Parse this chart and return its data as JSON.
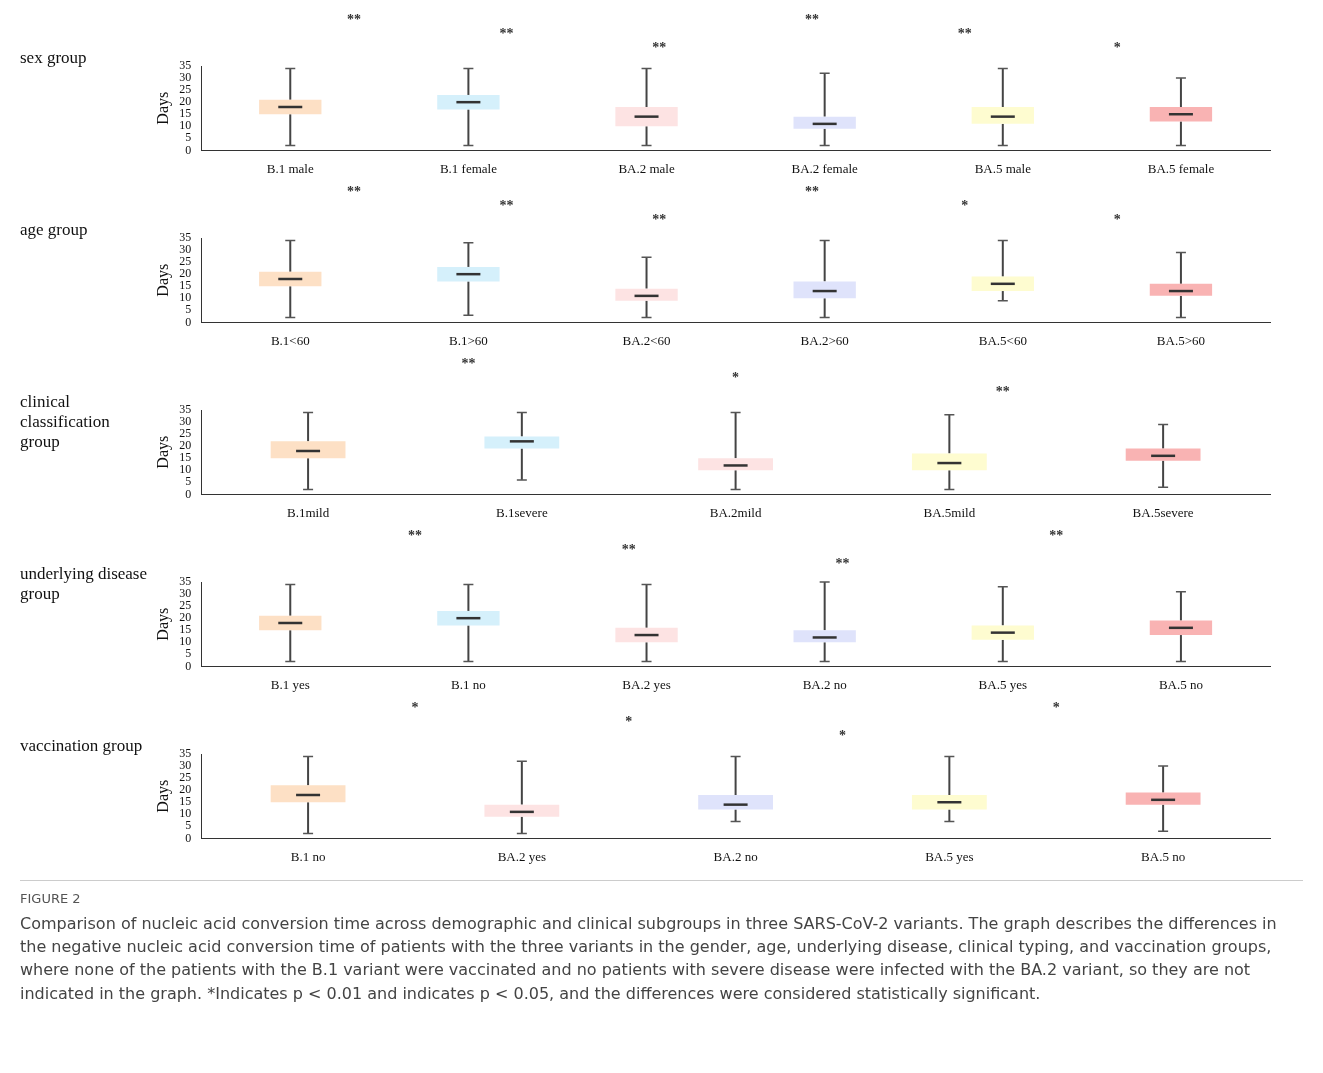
{
  "chart_data": [
    {
      "type": "box",
      "title": "sex group",
      "ylabel": "Days",
      "categories": [
        "B.1 male",
        "B.1 female",
        "BA.2 male",
        "BA.2 female",
        "BA.5 male",
        "BA.5 female"
      ],
      "colors": [
        "#fde0c5",
        "#d5f0fb",
        "#fde3e3",
        "#dfe3fb",
        "#fefcd0",
        "#f9b3b3"
      ],
      "ylim": [
        0,
        35
      ],
      "yticks": [
        0,
        5,
        10,
        15,
        20,
        25,
        30,
        35
      ],
      "grid": false,
      "legend": false,
      "annotations": [
        "**",
        "**",
        "**",
        "**",
        "**",
        "*"
      ],
      "boxes": [
        {
          "low": 2,
          "q1": 15,
          "median": 18,
          "q3": 21,
          "high": 34
        },
        {
          "low": 2,
          "q1": 17,
          "median": 20,
          "q3": 23,
          "high": 34
        },
        {
          "low": 2,
          "q1": 10,
          "median": 14,
          "q3": 18,
          "high": 34
        },
        {
          "low": 2,
          "q1": 9,
          "median": 11,
          "q3": 14,
          "high": 32
        },
        {
          "low": 2,
          "q1": 11,
          "median": 14,
          "q3": 18,
          "high": 34
        },
        {
          "low": 2,
          "q1": 12,
          "median": 15,
          "q3": 18,
          "high": 30
        }
      ]
    },
    {
      "type": "box",
      "title": "age group",
      "ylabel": "Days",
      "categories": [
        "B.1<60",
        "B.1>60",
        "BA.2<60",
        "BA.2>60",
        "BA.5<60",
        "BA.5>60"
      ],
      "colors": [
        "#fde0c5",
        "#d5f0fb",
        "#fde3e3",
        "#dfe3fb",
        "#fefcd0",
        "#f9b3b3"
      ],
      "ylim": [
        0,
        35
      ],
      "yticks": [
        0,
        5,
        10,
        15,
        20,
        25,
        30,
        35
      ],
      "grid": false,
      "legend": false,
      "annotations": [
        "**",
        "**",
        "**",
        "**",
        "*",
        "*"
      ],
      "boxes": [
        {
          "low": 2,
          "q1": 15,
          "median": 18,
          "q3": 21,
          "high": 34
        },
        {
          "low": 3,
          "q1": 17,
          "median": 20,
          "q3": 23,
          "high": 33
        },
        {
          "low": 2,
          "q1": 9,
          "median": 11,
          "q3": 14,
          "high": 27
        },
        {
          "low": 2,
          "q1": 10,
          "median": 13,
          "q3": 17,
          "high": 34
        },
        {
          "low": 9,
          "q1": 13,
          "median": 16,
          "q3": 19,
          "high": 34
        },
        {
          "low": 2,
          "q1": 11,
          "median": 13,
          "q3": 16,
          "high": 29
        }
      ]
    },
    {
      "type": "box",
      "title": "clinical classification group",
      "ylabel": "Days",
      "categories": [
        "B.1mild",
        "B.1severe",
        "BA.2mild",
        "BA.5mild",
        "BA.5severe"
      ],
      "colors": [
        "#fde0c5",
        "#d5f0fb",
        "#fde3e3",
        "#fefcd0",
        "#f9b3b3"
      ],
      "ylim": [
        0,
        35
      ],
      "yticks": [
        0,
        5,
        10,
        15,
        20,
        25,
        30,
        35
      ],
      "grid": false,
      "legend": false,
      "annotations": [
        "**",
        "*",
        "**"
      ],
      "boxes": [
        {
          "low": 2,
          "q1": 15,
          "median": 18,
          "q3": 22,
          "high": 34
        },
        {
          "low": 6,
          "q1": 19,
          "median": 22,
          "q3": 24,
          "high": 34
        },
        {
          "low": 2,
          "q1": 10,
          "median": 12,
          "q3": 15,
          "high": 34
        },
        {
          "low": 2,
          "q1": 10,
          "median": 13,
          "q3": 17,
          "high": 33
        },
        {
          "low": 3,
          "q1": 14,
          "median": 16,
          "q3": 19,
          "high": 29
        }
      ]
    },
    {
      "type": "box",
      "title": "underlying disease group",
      "ylabel": "Days",
      "categories": [
        "B.1 yes",
        "B.1 no",
        "BA.2 yes",
        "BA.2 no",
        "BA.5 yes",
        "BA.5 no"
      ],
      "colors": [
        "#fde0c5",
        "#d5f0fb",
        "#fde3e3",
        "#dfe3fb",
        "#fefcd0",
        "#f9b3b3"
      ],
      "ylim": [
        0,
        35
      ],
      "yticks": [
        0,
        5,
        10,
        15,
        20,
        25,
        30,
        35
      ],
      "grid": false,
      "legend": false,
      "annotations": [
        "**",
        "**",
        "**",
        "**"
      ],
      "boxes": [
        {
          "low": 2,
          "q1": 15,
          "median": 18,
          "q3": 21,
          "high": 34
        },
        {
          "low": 2,
          "q1": 17,
          "median": 20,
          "q3": 23,
          "high": 34
        },
        {
          "low": 2,
          "q1": 10,
          "median": 13,
          "q3": 16,
          "high": 34
        },
        {
          "low": 2,
          "q1": 10,
          "median": 12,
          "q3": 15,
          "high": 35
        },
        {
          "low": 2,
          "q1": 11,
          "median": 14,
          "q3": 17,
          "high": 33
        },
        {
          "low": 2,
          "q1": 13,
          "median": 16,
          "q3": 19,
          "high": 31
        }
      ]
    },
    {
      "type": "box",
      "title": "vaccination group",
      "ylabel": "Days",
      "categories": [
        "B.1 no",
        "BA.2 yes",
        "BA.2 no",
        "BA.5 yes",
        "BA.5 no"
      ],
      "colors": [
        "#fde0c5",
        "#fde3e3",
        "#dfe3fb",
        "#fefcd0",
        "#f9b3b3"
      ],
      "ylim": [
        0,
        35
      ],
      "yticks": [
        0,
        5,
        10,
        15,
        20,
        25,
        30,
        35
      ],
      "grid": false,
      "legend": false,
      "annotations": [
        "*",
        "*",
        "*",
        "*"
      ],
      "boxes": [
        {
          "low": 2,
          "q1": 15,
          "median": 18,
          "q3": 22,
          "high": 34
        },
        {
          "low": 2,
          "q1": 9,
          "median": 11,
          "q3": 14,
          "high": 32
        },
        {
          "low": 7,
          "q1": 12,
          "median": 14,
          "q3": 18,
          "high": 34
        },
        {
          "low": 7,
          "q1": 12,
          "median": 15,
          "q3": 18,
          "high": 34
        },
        {
          "low": 3,
          "q1": 14,
          "median": 16,
          "q3": 19,
          "high": 30
        }
      ]
    },
    {
      "type": "other",
      "title": "FIGURE 2",
      "annotations": [
        "Comparison of nucleic acid conversion time across demographic and clinical subgroups in three SARS-CoV-2 variants. The graph describes the differences in the negative nucleic acid conversion time of patients with the three variants in the gender, age, underlying disease, clinical typing, and vaccination groups, where none of the patients with the B.1 variant were vaccinated and no patients with severe disease were infected with the BA.2 variant, so they are not indicated in the graph. *Indicates p < 0.01 and indicates p < 0.05, and the differences were considered statistically significant."
      ]
    }
  ]
}
